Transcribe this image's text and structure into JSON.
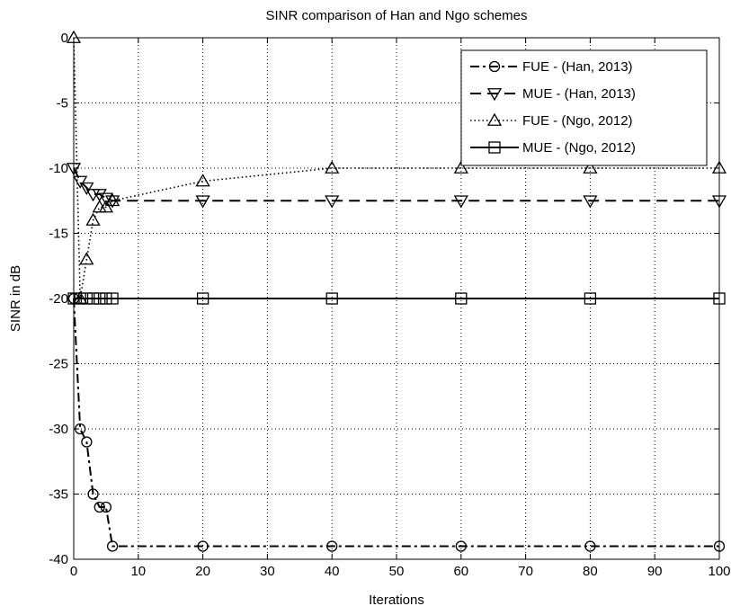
{
  "chart_data": {
    "type": "line",
    "title": "SINR comparison of Han and Ngo schemes",
    "xlabel": "Iterations",
    "ylabel": "SINR in dB",
    "xlim": [
      0,
      100
    ],
    "ylim": [
      -40,
      0
    ],
    "xticks": [
      "0",
      "10",
      "20",
      "30",
      "40",
      "50",
      "60",
      "70",
      "80",
      "90",
      "100"
    ],
    "yticks": [
      "0",
      "-5",
      "-10",
      "-15",
      "-20",
      "-25",
      "-30",
      "-35",
      "-40"
    ],
    "grid": true,
    "legend_position": "top-right",
    "series": [
      {
        "name": "FUE - (Han, 2013)",
        "line_style": "dash-dot",
        "marker": "circle",
        "x": [
          0,
          1,
          2,
          3,
          4,
          5,
          6,
          20,
          40,
          60,
          80,
          100
        ],
        "y": [
          -20,
          -30,
          -31,
          -35,
          -36,
          -36,
          -39,
          -39,
          -39,
          -39,
          -39,
          -39
        ]
      },
      {
        "name": "MUE - (Han, 2013)",
        "line_style": "dashed",
        "marker": "triangle-down",
        "x": [
          0,
          1,
          2,
          3,
          4,
          5,
          6,
          20,
          40,
          60,
          80,
          100
        ],
        "y": [
          -10,
          -11,
          -11.5,
          -12,
          -12,
          -12.3,
          -12.5,
          -12.5,
          -12.5,
          -12.5,
          -12.5,
          -12.5
        ]
      },
      {
        "name": "FUE - (Ngo, 2012)",
        "line_style": "dotted",
        "marker": "triangle-up",
        "x": [
          0,
          1,
          2,
          3,
          4,
          5,
          6,
          20,
          40,
          60,
          80,
          100
        ],
        "y": [
          0,
          -20,
          -17,
          -14,
          -13,
          -13,
          -12.5,
          -11,
          -10,
          -10,
          -10,
          -10
        ]
      },
      {
        "name": "MUE - (Ngo, 2012)",
        "line_style": "solid",
        "marker": "square",
        "x": [
          0,
          1,
          2,
          3,
          4,
          5,
          6,
          20,
          40,
          60,
          80,
          100
        ],
        "y": [
          -20,
          -20,
          -20,
          -20,
          -20,
          -20,
          -20,
          -20,
          -20,
          -20,
          -20,
          -20
        ]
      }
    ]
  }
}
